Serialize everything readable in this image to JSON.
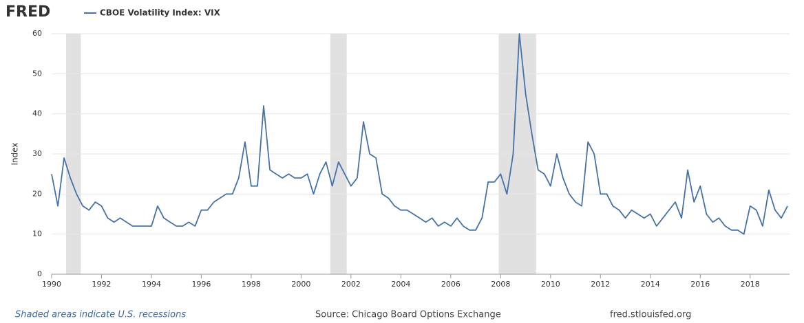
{
  "logo": "FRED",
  "footnotes": {
    "recessions": "Shaded areas indicate U.S. recessions",
    "source": "Source: Chicago Board Options Exchange",
    "site": "fred.stlouisfed.org"
  },
  "chart_data": {
    "type": "line",
    "y_label": "Index",
    "x": [
      1990,
      1990.25,
      1990.5,
      1990.75,
      1991,
      1991.25,
      1991.5,
      1991.75,
      1992,
      1992.25,
      1992.5,
      1992.75,
      1993,
      1993.25,
      1993.5,
      1993.75,
      1994,
      1994.25,
      1994.5,
      1994.75,
      1995,
      1995.25,
      1995.5,
      1995.75,
      1996,
      1996.25,
      1996.5,
      1996.75,
      1997,
      1997.25,
      1997.5,
      1997.75,
      1998,
      1998.25,
      1998.5,
      1998.75,
      1999,
      1999.25,
      1999.5,
      1999.75,
      2000,
      2000.25,
      2000.5,
      2000.75,
      2001,
      2001.25,
      2001.5,
      2001.75,
      2002,
      2002.25,
      2002.5,
      2002.75,
      2003,
      2003.25,
      2003.5,
      2003.75,
      2004,
      2004.25,
      2004.5,
      2004.75,
      2005,
      2005.25,
      2005.5,
      2005.75,
      2006,
      2006.25,
      2006.5,
      2006.75,
      2007,
      2007.25,
      2007.5,
      2007.75,
      2008,
      2008.25,
      2008.5,
      2008.75,
      2009,
      2009.25,
      2009.5,
      2009.75,
      2010,
      2010.25,
      2010.5,
      2010.75,
      2011,
      2011.25,
      2011.5,
      2011.75,
      2012,
      2012.25,
      2012.5,
      2012.75,
      2013,
      2013.25,
      2013.5,
      2013.75,
      2014,
      2014.25,
      2014.5,
      2014.75,
      2015,
      2015.25,
      2015.5,
      2015.75,
      2016,
      2016.25,
      2016.5,
      2016.75,
      2017,
      2017.25,
      2017.5,
      2017.75,
      2018,
      2018.25,
      2018.5,
      2018.75,
      2019,
      2019.25,
      2019.5
    ],
    "series": [
      {
        "name": "CBOE Volatility Index: VIX",
        "color": "#4572a7",
        "values": [
          25,
          17,
          29,
          24,
          20,
          17,
          16,
          18,
          17,
          14,
          13,
          14,
          13,
          12,
          12,
          12,
          12,
          17,
          14,
          13,
          12,
          12,
          13,
          12,
          16,
          16,
          18,
          19,
          20,
          20,
          24,
          33,
          22,
          22,
          42,
          26,
          25,
          24,
          25,
          24,
          24,
          25,
          20,
          25,
          28,
          22,
          28,
          25,
          22,
          24,
          38,
          30,
          29,
          20,
          19,
          17,
          16,
          16,
          15,
          14,
          13,
          14,
          12,
          13,
          12,
          14,
          12,
          11,
          11,
          14,
          23,
          23,
          25,
          20,
          30,
          60,
          45,
          35,
          26,
          25,
          22,
          30,
          24,
          20,
          18,
          17,
          33,
          30,
          20,
          20,
          17,
          16,
          14,
          16,
          15,
          14,
          15,
          12,
          14,
          16,
          18,
          14,
          26,
          18,
          22,
          15,
          13,
          14,
          12,
          11,
          11,
          10,
          17,
          16,
          12,
          21,
          16,
          14,
          17
        ]
      }
    ],
    "xlim": [
      1990,
      2019.58
    ],
    "ylim": [
      0,
      60
    ],
    "xticks": [
      1990,
      1992,
      1994,
      1996,
      1998,
      2000,
      2002,
      2004,
      2006,
      2008,
      2010,
      2012,
      2014,
      2016,
      2018
    ],
    "yticks": [
      0,
      10,
      20,
      30,
      40,
      50,
      60
    ],
    "grid": true,
    "recession_color": "#e1e1e1",
    "recessions": [
      [
        1990.58,
        1991.17
      ],
      [
        2001.17,
        2001.83
      ],
      [
        2007.92,
        2009.42
      ]
    ]
  }
}
